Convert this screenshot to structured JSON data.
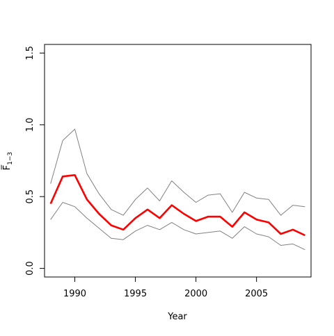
{
  "chart_data": {
    "type": "line",
    "title": "",
    "xlabel": "Year",
    "ylabel": "F̅",
    "ylabel_subscript": "1−3",
    "xlim": [
      1987.5,
      2009.5
    ],
    "ylim": [
      -0.06,
      1.56
    ],
    "x_ticks": [
      1990,
      1995,
      2000,
      2005
    ],
    "y_ticks": [
      0.0,
      0.5,
      1.0,
      1.5
    ],
    "x_tick_labels": [
      "1990",
      "1995",
      "2000",
      "2005"
    ],
    "y_tick_labels": [
      "0.0",
      "0.5",
      "1.0",
      "1.5"
    ],
    "grid": false,
    "legend": "none",
    "x": [
      1988,
      1989,
      1990,
      1991,
      1992,
      1993,
      1994,
      1995,
      1996,
      1997,
      1998,
      1999,
      2000,
      2001,
      2002,
      2003,
      2004,
      2005,
      2006,
      2007,
      2008,
      2009
    ],
    "series": [
      {
        "role": "upper",
        "color": "#808080",
        "values": [
          0.59,
          0.89,
          0.97,
          0.66,
          0.52,
          0.41,
          0.37,
          0.48,
          0.56,
          0.47,
          0.61,
          0.53,
          0.46,
          0.51,
          0.52,
          0.39,
          0.53,
          0.49,
          0.48,
          0.37,
          0.44,
          0.43
        ]
      },
      {
        "role": "estimate",
        "color": "#ff0000",
        "values": [
          0.45,
          0.64,
          0.65,
          0.48,
          0.38,
          0.3,
          0.27,
          0.35,
          0.41,
          0.35,
          0.44,
          0.38,
          0.33,
          0.36,
          0.36,
          0.29,
          0.39,
          0.34,
          0.32,
          0.24,
          0.27,
          0.23
        ]
      },
      {
        "role": "lower",
        "color": "#808080",
        "values": [
          0.34,
          0.46,
          0.43,
          0.35,
          0.28,
          0.21,
          0.2,
          0.26,
          0.3,
          0.27,
          0.32,
          0.27,
          0.24,
          0.25,
          0.26,
          0.21,
          0.29,
          0.24,
          0.22,
          0.16,
          0.17,
          0.13
        ]
      }
    ]
  }
}
